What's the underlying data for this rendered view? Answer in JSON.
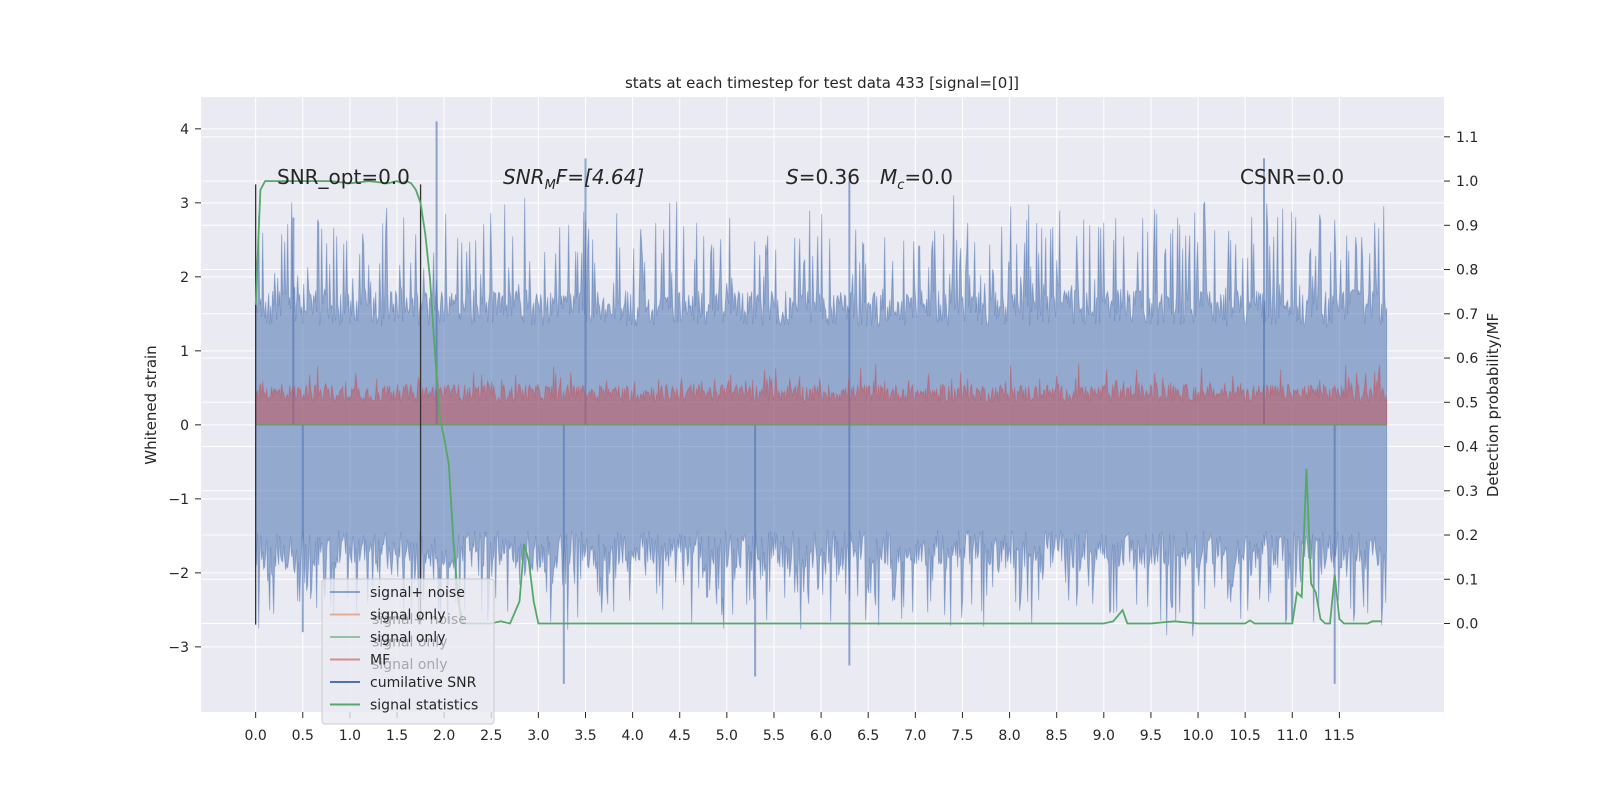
{
  "chart_data": {
    "type": "line",
    "title": "stats at each timestep for test data 433 [signal=[0]]",
    "xlabel": "",
    "ylabel_left": "Whitened strain",
    "ylabel_right": "Detection probability/MF",
    "xlim": [
      -0.58,
      12.61
    ],
    "ylim_left": [
      -3.88,
      4.43
    ],
    "ylim_right": [
      -0.2,
      1.19
    ],
    "x_ticks": [
      "0.0",
      "0.5",
      "1.0",
      "1.5",
      "2.0",
      "2.5",
      "3.0",
      "3.5",
      "4.0",
      "4.5",
      "5.0",
      "5.5",
      "6.0",
      "6.5",
      "7.0",
      "7.5",
      "8.0",
      "8.5",
      "9.0",
      "9.5",
      "10.0",
      "10.5",
      "11.0",
      "11.5"
    ],
    "y_ticks_left": [
      "−3",
      "−2",
      "−1",
      "0",
      "1",
      "2",
      "3",
      "4"
    ],
    "y_ticks_right": [
      "0.0",
      "0.1",
      "0.2",
      "0.3",
      "0.4",
      "0.5",
      "0.6",
      "0.7",
      "0.8",
      "0.9",
      "1.0",
      "1.1"
    ],
    "grid": true,
    "annotations": {
      "snr_opt": "SNR_opt=0.0",
      "snr_mf_prefix": "SNR",
      "snr_mf_sub": "M",
      "snr_mf_suffix": "F=[4.64]",
      "s_name": "S",
      "s_value": "=0.36",
      "mc_name": "M",
      "mc_sub": "c",
      "mc_value": "=0.0",
      "csnr": "CSNR=0.0"
    },
    "markers": {
      "window_start": 0.0,
      "window_end": 1.75
    },
    "noise_band": {
      "name": "signal+ noise",
      "x_range": [
        0.0,
        12.0
      ],
      "typical_high": 1.4,
      "typical_low": -1.5,
      "peak_high": 4.1,
      "peak_low": -3.5
    },
    "mf_band": {
      "name": "MF",
      "x_range": [
        0.0,
        12.0
      ],
      "typical_high": 0.55,
      "base": 0.0,
      "peak_high": 0.85
    },
    "signal_statistics": {
      "name": "signal statistics",
      "axis": "right",
      "x": [
        0.0,
        0.05,
        0.1,
        0.2,
        0.4,
        0.6,
        0.8,
        1.0,
        1.2,
        1.4,
        1.5,
        1.55,
        1.6,
        1.65,
        1.7,
        1.75,
        1.8,
        1.85,
        1.9,
        1.95,
        2.0,
        2.05,
        2.1,
        2.15,
        2.2,
        2.3,
        2.4,
        2.5,
        2.6,
        2.7,
        2.8,
        2.85,
        2.9,
        2.95,
        3.0,
        3.2,
        3.5,
        4.0,
        5.0,
        6.0,
        7.0,
        8.0,
        9.0,
        9.1,
        9.2,
        9.25,
        9.3,
        9.5,
        9.75,
        10.0,
        10.25,
        10.5,
        10.55,
        10.6,
        11.0,
        11.05,
        11.1,
        11.15,
        11.2,
        11.25,
        11.3,
        11.35,
        11.4,
        11.45,
        11.5,
        11.55,
        11.6,
        11.7,
        11.8,
        11.85,
        11.95
      ],
      "values": [
        0.72,
        0.98,
        1.0,
        1.0,
        1.0,
        1.0,
        1.0,
        0.995,
        1.0,
        0.995,
        1.0,
        0.995,
        1.0,
        0.995,
        0.98,
        0.95,
        0.88,
        0.78,
        0.62,
        0.47,
        0.42,
        0.36,
        0.18,
        0.05,
        0.0,
        0.0,
        0.0,
        0.0,
        0.005,
        0.0,
        0.05,
        0.18,
        0.14,
        0.05,
        0.0,
        0.0,
        0.0,
        0.0,
        0.0,
        0.0,
        0.0,
        0.0,
        0.0,
        0.005,
        0.03,
        0.0,
        0.0,
        0.0,
        0.005,
        0.0,
        0.0,
        0.0,
        0.007,
        0.0,
        0.0,
        0.07,
        0.06,
        0.35,
        0.09,
        0.07,
        0.01,
        0.0,
        0.0,
        0.11,
        0.01,
        0.0,
        0.0,
        0.0,
        0.0,
        0.005,
        0.005
      ]
    },
    "legend": {
      "placement": "lower-left",
      "entries": [
        {
          "label": "signal+ noise",
          "color": "#4c72b0",
          "alpha": 0.6
        },
        {
          "label": "signal only",
          "color": "#dd8452",
          "alpha": 0.6
        },
        {
          "label": "signal only",
          "color": "#55a868",
          "alpha": 0.6
        },
        {
          "label": "MF",
          "color": "#c44e52",
          "alpha": 0.6
        },
        {
          "label": "cumilative SNR",
          "color": "#4c72b0",
          "alpha": 1.0
        },
        {
          "label": "signal statistics",
          "color": "#55a868",
          "alpha": 1.0
        }
      ],
      "ghost_labels": [
        "signal+ noise",
        "signal only",
        "signal only"
      ]
    },
    "colors": {
      "background": "#eaeaf2",
      "grid": "#ffffff",
      "noise": "#4c72b0",
      "mf": "#c44e52",
      "statistics": "#55a868",
      "marker": "#333333"
    }
  }
}
